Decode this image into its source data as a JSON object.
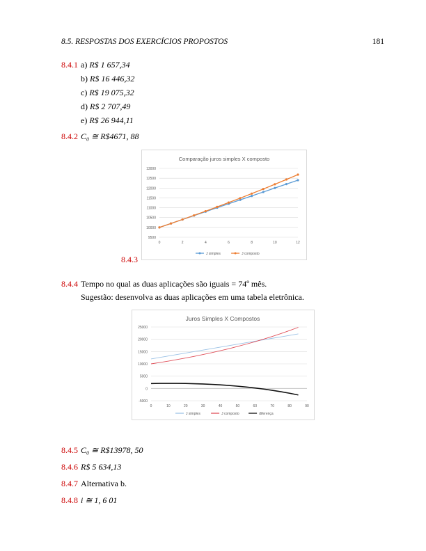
{
  "header": {
    "left": "8.5.  RESPOSTAS DOS EXERCÍCIOS PROPOSTOS",
    "right": "181"
  },
  "answers": {
    "a841": {
      "num": "8.4.1",
      "items": [
        {
          "label": "a)",
          "value": "R$ 1 657,34"
        },
        {
          "label": "b)",
          "value": "R$ 16 446,32"
        },
        {
          "label": "c)",
          "value": "R$ 19 075,32"
        },
        {
          "label": "d)",
          "value": "R$ 2 707,49"
        },
        {
          "label": "e)",
          "value": "R$ 26 944,11"
        }
      ]
    },
    "a842": {
      "num": "8.4.2",
      "text": "C₀ ≅ R$4671, 88"
    },
    "a843": {
      "num": "8.4.3"
    },
    "a844": {
      "num": "8.4.4",
      "line1": "Tempo no qual as duas aplicações são iguais = 74º mês.",
      "line2": "Sugestão: desenvolva as duas aplicações em uma tabela eletrônica."
    },
    "a845": {
      "num": "8.4.5",
      "text": "C₀ ≅ R$13978, 50"
    },
    "a846": {
      "num": "8.4.6",
      "text": "R$ 5 634,13"
    },
    "a847": {
      "num": "8.4.7",
      "text": "Alternativa b."
    },
    "a848": {
      "num": "8.4.8",
      "text": "i ≅ 1, 6 01"
    }
  },
  "chart_data": [
    {
      "type": "line",
      "title": "Comparação juros simples X composto",
      "x": [
        0,
        1,
        2,
        3,
        4,
        5,
        6,
        7,
        8,
        9,
        10,
        11,
        12
      ],
      "xticks": [
        0,
        2,
        4,
        6,
        8,
        10,
        12
      ],
      "ylim": [
        9500,
        13000
      ],
      "yticks": [
        9500,
        10000,
        10500,
        11000,
        11500,
        12000,
        12500,
        13000
      ],
      "grid": true,
      "legend_position": "bottom",
      "series": [
        {
          "name": "J simples",
          "color": "#5b9bd5",
          "values": [
            10000,
            10200,
            10400,
            10600,
            10800,
            11000,
            11200,
            11400,
            11600,
            11800,
            12000,
            12200,
            12400
          ]
        },
        {
          "name": "J composto",
          "color": "#ed7d31",
          "values": [
            10000,
            10200,
            10404,
            10612,
            10824,
            11041,
            11262,
            11487,
            11717,
            11951,
            12190,
            12434,
            12682
          ]
        }
      ]
    },
    {
      "type": "line",
      "title": "Juros Simples X Compostos",
      "x": [
        0,
        5,
        10,
        15,
        20,
        25,
        30,
        35,
        40,
        45,
        50,
        55,
        60,
        65,
        70,
        75,
        80,
        85
      ],
      "xticks": [
        0,
        10,
        20,
        30,
        40,
        50,
        60,
        70,
        80,
        90
      ],
      "ylim": [
        -5000,
        25000
      ],
      "yticks": [
        -5000,
        0,
        5000,
        10000,
        15000,
        20000,
        25000
      ],
      "grid": true,
      "legend_position": "bottom",
      "series": [
        {
          "name": "J simples",
          "color": "#9dc3e6",
          "values": [
            12000,
            12600,
            13200,
            13800,
            14400,
            15000,
            15600,
            16200,
            16800,
            17400,
            18000,
            18600,
            19200,
            19800,
            20400,
            21000,
            21600,
            22200
          ]
        },
        {
          "name": "J composto",
          "color": "#e0505a",
          "values": [
            10000,
            10550,
            11130,
            11740,
            12390,
            13070,
            13790,
            14550,
            15350,
            16190,
            17090,
            18030,
            19020,
            20060,
            21170,
            22330,
            23560,
            24860
          ]
        },
        {
          "name": "diferença",
          "color": "#111111",
          "values": [
            2000,
            2050,
            2070,
            2060,
            2010,
            1930,
            1810,
            1650,
            1450,
            1210,
            910,
            570,
            180,
            -260,
            -770,
            -1330,
            -1960,
            -2660
          ]
        }
      ]
    }
  ]
}
